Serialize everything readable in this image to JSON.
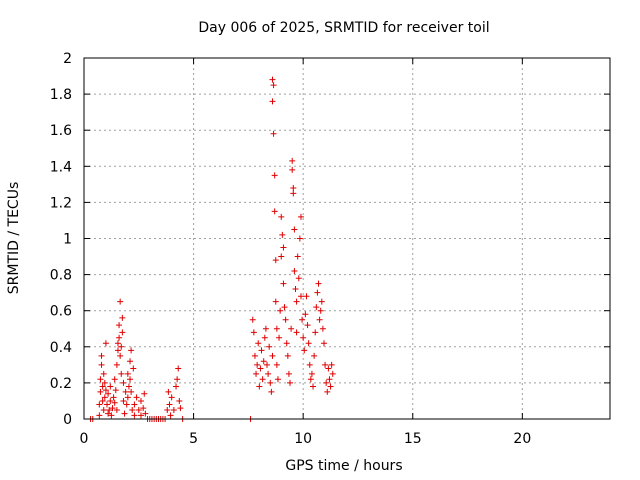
{
  "chart_data": {
    "type": "scatter",
    "title": "Day 006 of 2025, SRMTID for receiver toil",
    "xlabel": "GPS time / hours",
    "ylabel": "SRMTID / TECUs",
    "xlim": [
      0,
      24
    ],
    "ylim": [
      0,
      2
    ],
    "x_ticks": [
      0,
      5,
      10,
      15,
      20
    ],
    "x_tick_labels": [
      "0",
      "5",
      "10",
      "15",
      "20"
    ],
    "y_ticks": [
      0,
      0.2,
      0.4,
      0.6,
      0.8,
      1,
      1.2,
      1.4,
      1.6,
      1.8,
      2
    ],
    "y_tick_labels": [
      "0",
      "0.2",
      "0.4",
      "0.6",
      "0.8",
      "1",
      "1.2",
      "1.4",
      "1.6",
      "1.8",
      "2"
    ],
    "grid": true,
    "marker": "+",
    "color": "#e00000",
    "series": [
      {
        "name": "SRMTID",
        "points": [
          [
            0.3,
            0
          ],
          [
            0.4,
            0
          ],
          [
            0.7,
            0.02
          ],
          [
            0.7,
            0.08
          ],
          [
            0.75,
            0.15
          ],
          [
            0.75,
            0.22
          ],
          [
            0.8,
            0.3
          ],
          [
            0.8,
            0.35
          ],
          [
            0.85,
            0.18
          ],
          [
            0.85,
            0.1
          ],
          [
            0.9,
            0.05
          ],
          [
            0.9,
            0.25
          ],
          [
            0.95,
            0.2
          ],
          [
            0.95,
            0.12
          ],
          [
            1.0,
            0.42
          ],
          [
            1.0,
            0.16
          ],
          [
            1.05,
            0.08
          ],
          [
            1.1,
            0.14
          ],
          [
            1.1,
            0.03
          ],
          [
            1.15,
            0.05
          ],
          [
            1.2,
            0.18
          ],
          [
            1.2,
            0.1
          ],
          [
            1.25,
            0.02
          ],
          [
            1.3,
            0.06
          ],
          [
            1.35,
            0.12
          ],
          [
            1.4,
            0.22
          ],
          [
            1.4,
            0.09
          ],
          [
            1.45,
            0.16
          ],
          [
            1.5,
            0.05
          ],
          [
            1.5,
            0.3
          ],
          [
            1.55,
            0.38
          ],
          [
            1.55,
            0.42
          ],
          [
            1.6,
            0.45
          ],
          [
            1.6,
            0.52
          ],
          [
            1.65,
            0.65
          ],
          [
            1.65,
            0.35
          ],
          [
            1.7,
            0.4
          ],
          [
            1.7,
            0.25
          ],
          [
            1.75,
            0.56
          ],
          [
            1.75,
            0.48
          ],
          [
            1.8,
            0.1
          ],
          [
            1.8,
            0.2
          ],
          [
            1.85,
            0.03
          ],
          [
            1.9,
            0.15
          ],
          [
            1.95,
            0.08
          ],
          [
            2.0,
            0.25
          ],
          [
            2.0,
            0.12
          ],
          [
            2.05,
            0.18
          ],
          [
            2.1,
            0.32
          ],
          [
            2.1,
            0.22
          ],
          [
            2.15,
            0.38
          ],
          [
            2.15,
            0.15
          ],
          [
            2.2,
            0.05
          ],
          [
            2.25,
            0.28
          ],
          [
            2.3,
            0.08
          ],
          [
            2.3,
            0.02
          ],
          [
            2.4,
            0.12
          ],
          [
            2.5,
            0.05
          ],
          [
            2.6,
            0.1
          ],
          [
            2.6,
            0.02
          ],
          [
            2.7,
            0.06
          ],
          [
            2.75,
            0.14
          ],
          [
            2.8,
            0.03
          ],
          [
            2.9,
            0
          ],
          [
            3.0,
            0
          ],
          [
            3.1,
            0
          ],
          [
            3.2,
            0
          ],
          [
            3.3,
            0
          ],
          [
            3.4,
            0
          ],
          [
            3.5,
            0
          ],
          [
            3.6,
            0
          ],
          [
            3.7,
            0
          ],
          [
            3.8,
            0.05
          ],
          [
            3.85,
            0.15
          ],
          [
            3.9,
            0.08
          ],
          [
            3.95,
            0.02
          ],
          [
            4.0,
            0.12
          ],
          [
            4.1,
            0.05
          ],
          [
            4.2,
            0.18
          ],
          [
            4.25,
            0.22
          ],
          [
            4.3,
            0.28
          ],
          [
            4.35,
            0.1
          ],
          [
            4.4,
            0.06
          ],
          [
            4.5,
            0
          ],
          [
            7.6,
            0
          ],
          [
            7.7,
            0.55
          ],
          [
            7.75,
            0.48
          ],
          [
            7.8,
            0.35
          ],
          [
            7.85,
            0.25
          ],
          [
            7.9,
            0.3
          ],
          [
            7.95,
            0.42
          ],
          [
            8.0,
            0.18
          ],
          [
            8.05,
            0.28
          ],
          [
            8.1,
            0.38
          ],
          [
            8.15,
            0.22
          ],
          [
            8.2,
            0.32
          ],
          [
            8.25,
            0.45
          ],
          [
            8.3,
            0.5
          ],
          [
            8.35,
            0.3
          ],
          [
            8.4,
            0.25
          ],
          [
            8.45,
            0.4
          ],
          [
            8.5,
            0.2
          ],
          [
            8.55,
            0.15
          ],
          [
            8.6,
            0.35
          ],
          [
            8.6,
            1.88
          ],
          [
            8.6,
            1.76
          ],
          [
            8.65,
            1.85
          ],
          [
            8.65,
            1.58
          ],
          [
            8.7,
            1.35
          ],
          [
            8.7,
            1.15
          ],
          [
            8.75,
            0.88
          ],
          [
            8.75,
            0.65
          ],
          [
            8.8,
            0.5
          ],
          [
            8.8,
            0.3
          ],
          [
            8.85,
            0.22
          ],
          [
            8.9,
            0.45
          ],
          [
            8.95,
            0.6
          ],
          [
            9.0,
            1.12
          ],
          [
            9.0,
            0.9
          ],
          [
            9.05,
            1.02
          ],
          [
            9.1,
            0.95
          ],
          [
            9.1,
            0.75
          ],
          [
            9.15,
            0.62
          ],
          [
            9.2,
            0.55
          ],
          [
            9.25,
            0.42
          ],
          [
            9.3,
            0.35
          ],
          [
            9.35,
            0.25
          ],
          [
            9.4,
            0.2
          ],
          [
            9.45,
            0.5
          ],
          [
            9.5,
            1.43
          ],
          [
            9.5,
            1.38
          ],
          [
            9.55,
            1.28
          ],
          [
            9.55,
            1.25
          ],
          [
            9.6,
            1.05
          ],
          [
            9.6,
            0.82
          ],
          [
            9.65,
            0.72
          ],
          [
            9.7,
            0.65
          ],
          [
            9.7,
            0.48
          ],
          [
            9.75,
            0.9
          ],
          [
            9.8,
            0.78
          ],
          [
            9.85,
            1.0
          ],
          [
            9.9,
            1.12
          ],
          [
            9.9,
            0.68
          ],
          [
            9.95,
            0.55
          ],
          [
            10.0,
            0.45
          ],
          [
            10.05,
            0.38
          ],
          [
            10.1,
            0.58
          ],
          [
            10.15,
            0.68
          ],
          [
            10.2,
            0.52
          ],
          [
            10.25,
            0.42
          ],
          [
            10.3,
            0.3
          ],
          [
            10.35,
            0.22
          ],
          [
            10.4,
            0.25
          ],
          [
            10.45,
            0.18
          ],
          [
            10.5,
            0.35
          ],
          [
            10.55,
            0.48
          ],
          [
            10.6,
            0.62
          ],
          [
            10.65,
            0.7
          ],
          [
            10.7,
            0.75
          ],
          [
            10.75,
            0.55
          ],
          [
            10.8,
            0.6
          ],
          [
            10.85,
            0.65
          ],
          [
            10.9,
            0.5
          ],
          [
            10.95,
            0.42
          ],
          [
            11.0,
            0.3
          ],
          [
            11.05,
            0.2
          ],
          [
            11.1,
            0.15
          ],
          [
            11.15,
            0.28
          ],
          [
            11.2,
            0.22
          ],
          [
            11.25,
            0.18
          ],
          [
            11.3,
            0.3
          ],
          [
            11.35,
            0.25
          ]
        ]
      }
    ]
  }
}
